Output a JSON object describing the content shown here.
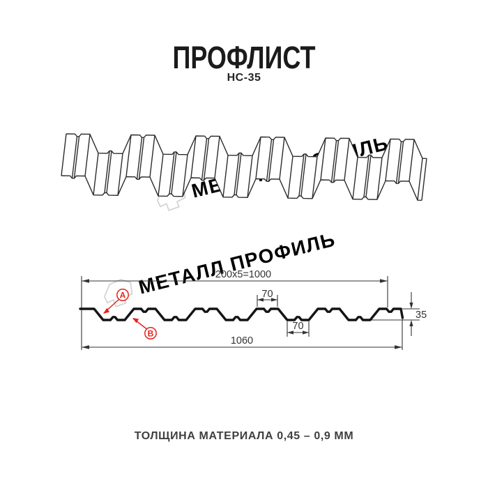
{
  "header": {
    "title": "ПРОФЛИСТ",
    "model": "НС-35"
  },
  "watermark": {
    "brand": "МЕТАЛЛ ПРОФИЛЬ",
    "color": "#d6d6d6"
  },
  "cross_section": {
    "dim_top_total": "200x5=1000",
    "dim_flange_top": "70",
    "dim_flange_bottom": "70",
    "dim_overall_width": "1060",
    "dim_height": "35",
    "label_a": "А",
    "label_b": "В",
    "line_color": "#141414",
    "dim_color": "#333333",
    "accent_red": "#e3231d",
    "profile_mm": {
      "pitch": 200,
      "repeats": 5,
      "coverage": 1000,
      "overall_width": 1060,
      "height": 35,
      "top_flange": 70,
      "bottom_flange": 70
    }
  },
  "footer": {
    "thickness_note": "ТОЛЩИНА МАТЕРИАЛА 0,45 – 0,9 ММ"
  }
}
